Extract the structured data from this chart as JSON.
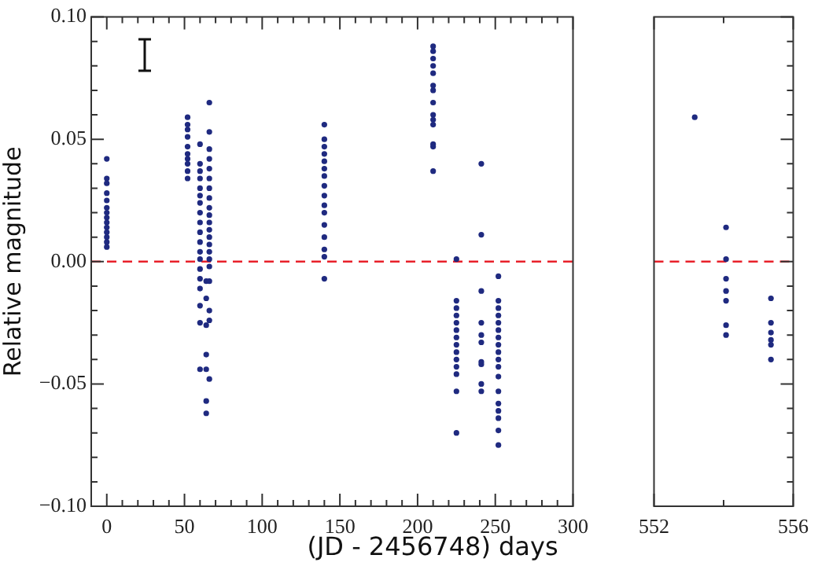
{
  "chart_data": [
    {
      "type": "scatter",
      "xlabel": "(JD - 2456748) days",
      "ylabel": "Relative magnitude",
      "marker": "circle",
      "grid": false,
      "legend": false,
      "xlim": [
        -10,
        300
      ],
      "xticks": [
        0,
        {
          "value": 10,
          "label": null
        },
        {
          "value": 20,
          "label": null
        },
        {
          "value": 30,
          "label": null
        },
        {
          "value": 40,
          "label": null
        },
        50,
        {
          "value": 60,
          "label": null
        },
        {
          "value": 70,
          "label": null
        },
        {
          "value": 80,
          "label": null
        },
        {
          "value": 90,
          "label": null
        },
        100,
        {
          "value": 110,
          "label": null
        },
        {
          "value": 120,
          "label": null
        },
        {
          "value": 130,
          "label": null
        },
        {
          "value": 140,
          "label": null
        },
        150,
        {
          "value": 160,
          "label": null
        },
        {
          "value": 170,
          "label": null
        },
        {
          "value": 180,
          "label": null
        },
        {
          "value": 190,
          "label": null
        },
        200,
        {
          "value": 210,
          "label": null
        },
        {
          "value": 220,
          "label": null
        },
        {
          "value": 230,
          "label": null
        },
        {
          "value": 240,
          "label": null
        },
        250,
        {
          "value": 260,
          "label": null
        },
        {
          "value": 270,
          "label": null
        },
        {
          "value": 280,
          "label": null
        },
        {
          "value": 290,
          "label": null
        },
        300
      ],
      "ylim": [
        -0.1,
        0.1
      ],
      "yticks": [
        {
          "value": -0.1,
          "label": "−0.10"
        },
        {
          "value": -0.09,
          "label": null
        },
        {
          "value": -0.08,
          "label": null
        },
        {
          "value": -0.07,
          "label": null
        },
        {
          "value": -0.06,
          "label": null
        },
        {
          "value": -0.05,
          "label": "−0.05"
        },
        {
          "value": -0.04,
          "label": null
        },
        {
          "value": -0.03,
          "label": null
        },
        {
          "value": -0.02,
          "label": null
        },
        {
          "value": -0.01,
          "label": null
        },
        {
          "value": 0,
          "label": "0.00"
        },
        {
          "value": 0.01,
          "label": null
        },
        {
          "value": 0.02,
          "label": null
        },
        {
          "value": 0.03,
          "label": null
        },
        {
          "value": 0.04,
          "label": null
        },
        {
          "value": 0.05,
          "label": "0.05"
        },
        {
          "value": 0.06,
          "label": null
        },
        {
          "value": 0.07,
          "label": null
        },
        {
          "value": 0.08,
          "label": null
        },
        {
          "value": 0.09,
          "label": null
        },
        {
          "value": 0.1,
          "label": "0.10"
        }
      ],
      "ref_lines": [
        {
          "axis": "y",
          "value": 0,
          "label": null,
          "color": "#e8202a",
          "line_style": "dashed"
        }
      ],
      "series": [
        {
          "color": "#1f2a80",
          "x": [
            0,
            0,
            0,
            0,
            0,
            0,
            0,
            0,
            0,
            0,
            0,
            0,
            0,
            0,
            52,
            52,
            52,
            52,
            52,
            52,
            52,
            52,
            52,
            52,
            60,
            60,
            60,
            60,
            60,
            60,
            60,
            60,
            60,
            60,
            60,
            60,
            60,
            60,
            60,
            60,
            60,
            60,
            60,
            64,
            64,
            64,
            64,
            64,
            64,
            64,
            66,
            66,
            66,
            66,
            66,
            66,
            66,
            66,
            66,
            66,
            66,
            66,
            66,
            66,
            66,
            66,
            66,
            66,
            66,
            66,
            66,
            140,
            140,
            140,
            140,
            140,
            140,
            140,
            140,
            140,
            140,
            140,
            140,
            140,
            140,
            140,
            140,
            210,
            210,
            210,
            210,
            210,
            210,
            210,
            210,
            210,
            210,
            210,
            210,
            210,
            210,
            225,
            225,
            225,
            225,
            225,
            225,
            225,
            225,
            225,
            225,
            225,
            225,
            225,
            225,
            241,
            241,
            241,
            241,
            241,
            241,
            241,
            241,
            241,
            241,
            252,
            252,
            252,
            252,
            252,
            252,
            252,
            252,
            252,
            252,
            252,
            252,
            252,
            252,
            252,
            252,
            252,
            252
          ],
          "values": [
            0.042,
            0.034,
            0.032,
            0.028,
            0.025,
            0.022,
            0.02,
            0.018,
            0.016,
            0.014,
            0.012,
            0.01,
            0.008,
            0.006,
            0.059,
            0.056,
            0.054,
            0.051,
            0.047,
            0.044,
            0.042,
            0.04,
            0.037,
            0.034,
            0.048,
            0.04,
            0.037,
            0.034,
            0.03,
            0.027,
            0.024,
            0.02,
            0.016,
            0.012,
            0.008,
            0.004,
            0.001,
            -0.003,
            -0.007,
            -0.011,
            -0.018,
            -0.025,
            -0.044,
            -0.008,
            -0.015,
            -0.026,
            -0.038,
            -0.044,
            -0.057,
            -0.062,
            0.065,
            0.053,
            0.046,
            0.042,
            0.038,
            0.034,
            0.03,
            0.026,
            0.022,
            0.019,
            0.016,
            0.013,
            0.01,
            0.007,
            0.004,
            0.001,
            -0.002,
            -0.008,
            -0.02,
            -0.024,
            -0.048,
            0.056,
            0.05,
            0.047,
            0.044,
            0.041,
            0.038,
            0.035,
            0.031,
            0.027,
            0.023,
            0.02,
            0.015,
            0.01,
            0.005,
            0.002,
            -0.007,
            0.088,
            0.086,
            0.083,
            0.08,
            0.077,
            0.072,
            0.07,
            0.065,
            0.06,
            0.058,
            0.056,
            0.048,
            0.047,
            0.037,
            0.001,
            -0.016,
            -0.019,
            -0.022,
            -0.025,
            -0.028,
            -0.031,
            -0.034,
            -0.037,
            -0.04,
            -0.043,
            -0.046,
            -0.053,
            -0.07,
            0.04,
            0.011,
            -0.012,
            -0.025,
            -0.03,
            -0.033,
            -0.041,
            -0.042,
            -0.05,
            -0.053,
            -0.006,
            -0.016,
            -0.019,
            -0.022,
            -0.025,
            -0.028,
            -0.031,
            -0.034,
            -0.037,
            -0.04,
            -0.043,
            -0.047,
            -0.053,
            -0.058,
            -0.061,
            -0.064,
            -0.069,
            -0.075
          ]
        }
      ]
    },
    {
      "type": "scatter",
      "marker": "circle",
      "grid": false,
      "legend": false,
      "tick_labels": "x",
      "xlim": [
        552,
        556
      ],
      "xticks": [
        552,
        {
          "value": 554,
          "label": null
        },
        556
      ],
      "ylim": [
        -0.1,
        0.1
      ],
      "yticks": [
        -0.1,
        -0.09,
        -0.08,
        -0.07,
        -0.06,
        -0.05,
        -0.04,
        -0.03,
        -0.02,
        -0.01,
        0,
        0.01,
        0.02,
        0.03,
        0.04,
        0.05,
        0.06,
        0.07,
        0.08,
        0.09,
        0.1
      ],
      "ref_lines": [
        {
          "axis": "y",
          "value": 0,
          "label": null,
          "color": "#e8202a",
          "line_style": "dashed"
        }
      ],
      "series": [
        {
          "color": "#1f2a80",
          "x": [
            553.17,
            554.07,
            554.07,
            554.07,
            554.07,
            554.07,
            554.07,
            554.07,
            555.36,
            555.36,
            555.36,
            555.36,
            555.36,
            555.36
          ],
          "values": [
            0.059,
            0.014,
            0.001,
            -0.007,
            -0.012,
            -0.016,
            -0.026,
            -0.03,
            -0.015,
            -0.025,
            -0.029,
            -0.032,
            -0.034,
            -0.04
          ]
        }
      ]
    }
  ]
}
